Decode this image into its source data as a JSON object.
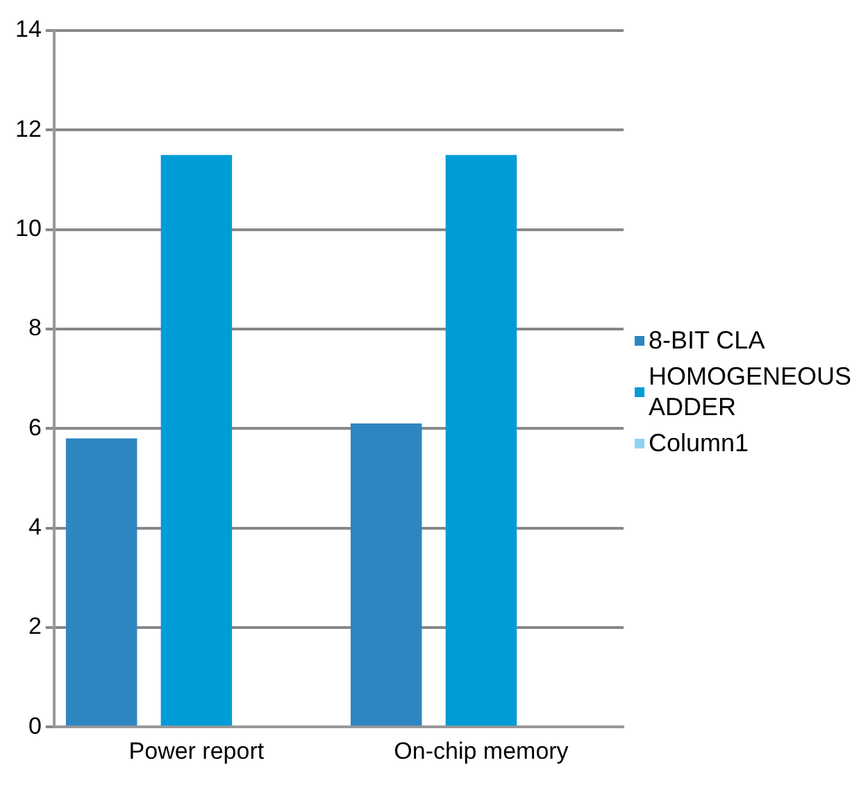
{
  "chart_data": {
    "type": "bar",
    "categories": [
      "Power report",
      "On-chip memory"
    ],
    "series": [
      {
        "name": "8-BIT CLA",
        "color": "#2e86c1",
        "values": [
          5.8,
          6.1
        ]
      },
      {
        "name": "HOMOGENEOUS ADDER",
        "color": "#009cd8",
        "values": [
          11.5,
          11.5
        ]
      },
      {
        "name": "Column1",
        "color": "#8fd3ef",
        "values": [
          null,
          null
        ]
      }
    ],
    "ylim": [
      0,
      14
    ],
    "yticks": [
      0,
      2,
      4,
      6,
      8,
      10,
      12,
      14
    ],
    "grid": "y",
    "legend": "right"
  }
}
